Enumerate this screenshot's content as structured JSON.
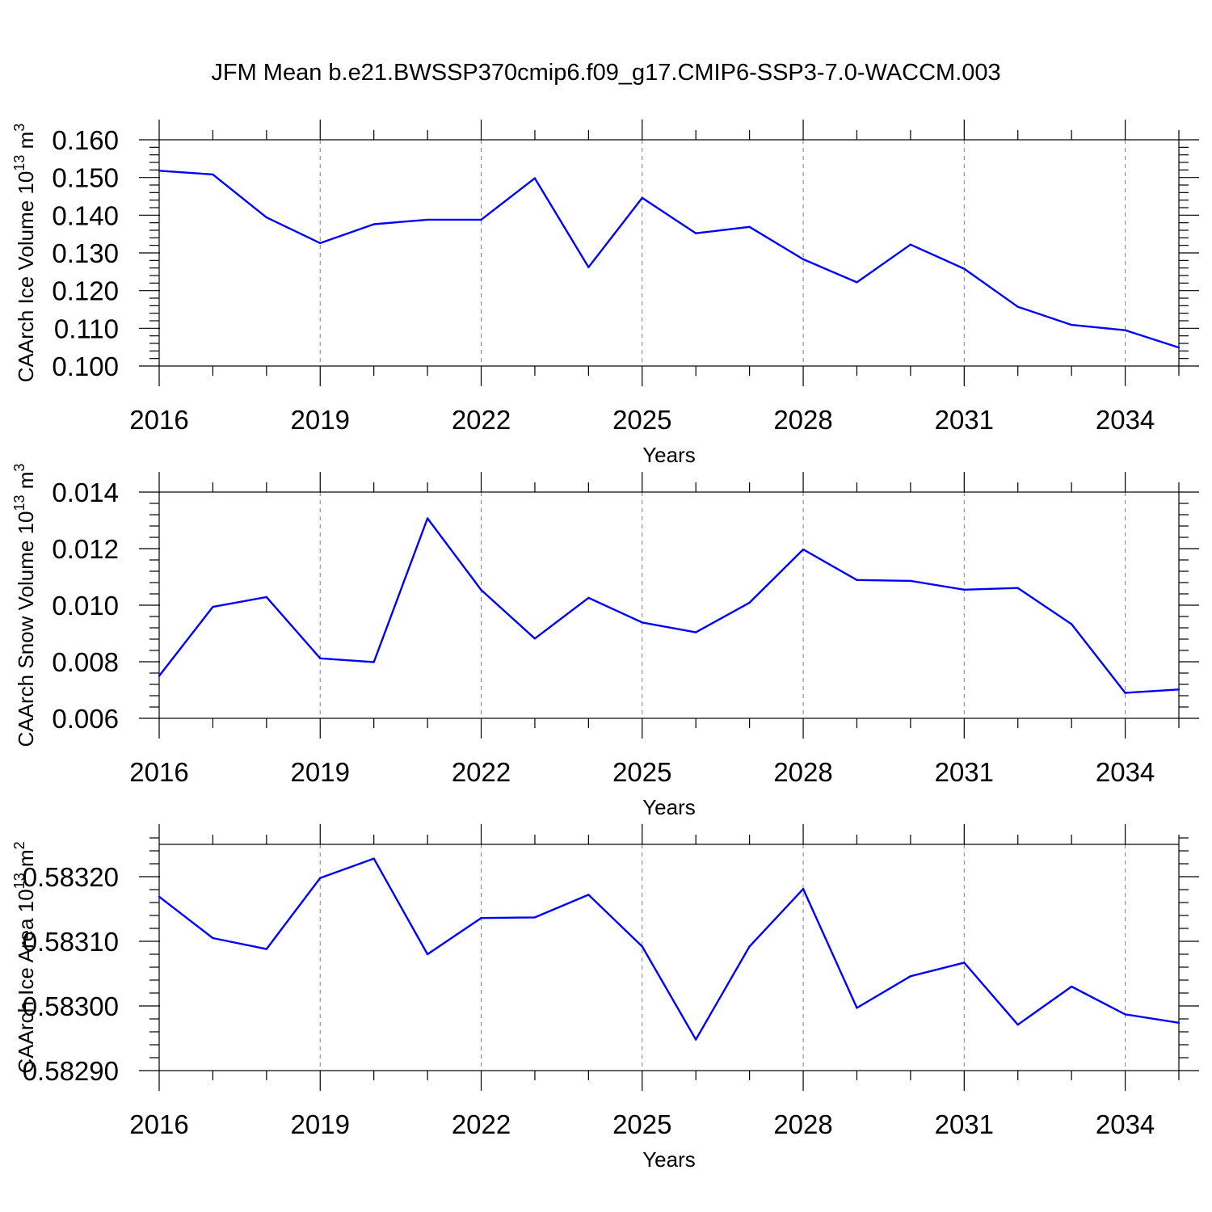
{
  "title": "JFM Mean b.e21.BWSSP370cmip6.f09_g17.CMIP6-SSP3-7.0-WACCM.003",
  "colors": {
    "line": "#0000ff",
    "axis": "#000000",
    "grid": "#808080"
  },
  "chart_data": [
    {
      "type": "line",
      "title": "JFM Mean b.e21.BWSSP370cmip6.f09_g17.CMIP6-SSP3-7.0-WACCM.003",
      "xlabel": "Years",
      "ylabel": "CAArch Ice Volume 10",
      "ylabel_exp": "13",
      "ylabel_unit": "m",
      "ylabel_unit_exp": "3",
      "xlim": [
        2016,
        2035
      ],
      "ylim": [
        0.1,
        0.16
      ],
      "x_ticks": [
        2016,
        2019,
        2022,
        2025,
        2028,
        2031,
        2034
      ],
      "x_tick_labels": [
        "2016",
        "2019",
        "2022",
        "2025",
        "2028",
        "2031",
        "2034"
      ],
      "y_ticks": [
        0.1,
        0.11,
        0.12,
        0.13,
        0.14,
        0.15,
        0.16
      ],
      "y_tick_labels": [
        "0.100",
        "0.110",
        "0.120",
        "0.130",
        "0.140",
        "0.150",
        "0.160"
      ],
      "y_minor_step": 0.002,
      "grid": "vertical dashed at labeled years",
      "x": [
        2016,
        2017,
        2018,
        2019,
        2020,
        2021,
        2022,
        2023,
        2024,
        2025,
        2026,
        2027,
        2028,
        2029,
        2030,
        2031,
        2032,
        2033,
        2034,
        2035
      ],
      "values": [
        0.1518,
        0.1508,
        0.1394,
        0.1326,
        0.1376,
        0.1388,
        0.1388,
        0.1498,
        0.1262,
        0.1446,
        0.1352,
        0.1369,
        0.1283,
        0.1222,
        0.1322,
        0.1258,
        0.1157,
        0.1109,
        0.1095,
        0.1049
      ]
    },
    {
      "type": "line",
      "xlabel": "Years",
      "ylabel": "CAArch Snow Volume 10",
      "ylabel_exp": "13",
      "ylabel_unit": "m",
      "ylabel_unit_exp": "3",
      "xlim": [
        2016,
        2035
      ],
      "ylim": [
        0.006,
        0.014
      ],
      "x_ticks": [
        2016,
        2019,
        2022,
        2025,
        2028,
        2031,
        2034
      ],
      "x_tick_labels": [
        "2016",
        "2019",
        "2022",
        "2025",
        "2028",
        "2031",
        "2034"
      ],
      "y_ticks": [
        0.006,
        0.008,
        0.01,
        0.012,
        0.014
      ],
      "y_tick_labels": [
        "0.006",
        "0.008",
        "0.010",
        "0.012",
        "0.014"
      ],
      "y_minor_step": 0.0004,
      "grid": "vertical dashed at labeled years",
      "x": [
        2016,
        2017,
        2018,
        2019,
        2020,
        2021,
        2022,
        2023,
        2024,
        2025,
        2026,
        2027,
        2028,
        2029,
        2030,
        2031,
        2032,
        2033,
        2034,
        2035
      ],
      "values": [
        0.0075,
        0.00994,
        0.01029,
        0.00812,
        0.00799,
        0.01307,
        0.01054,
        0.00882,
        0.01026,
        0.00939,
        0.00904,
        0.01009,
        0.01197,
        0.01089,
        0.01086,
        0.01055,
        0.01061,
        0.00933,
        0.0069,
        0.00702
      ]
    },
    {
      "type": "line",
      "xlabel": "Years",
      "ylabel": "CAArch Ice Area 10",
      "ylabel_exp": "13",
      "ylabel_unit": "m",
      "ylabel_unit_exp": "2",
      "xlim": [
        2016,
        2035
      ],
      "ylim": [
        0.5829,
        0.58325
      ],
      "x_ticks": [
        2016,
        2019,
        2022,
        2025,
        2028,
        2031,
        2034
      ],
      "x_tick_labels": [
        "2016",
        "2019",
        "2022",
        "2025",
        "2028",
        "2031",
        "2034"
      ],
      "y_ticks": [
        0.5829,
        0.583,
        0.5831,
        0.5832
      ],
      "y_tick_labels": [
        "0.58290",
        "0.58300",
        "0.58310",
        "0.58320"
      ],
      "y_minor_step": 2e-05,
      "grid": "vertical dashed at labeled years",
      "x": [
        2016,
        2017,
        2018,
        2019,
        2020,
        2021,
        2022,
        2023,
        2024,
        2025,
        2026,
        2027,
        2028,
        2029,
        2030,
        2031,
        2032,
        2033,
        2034,
        2035
      ],
      "values": [
        0.583169,
        0.583105,
        0.583088,
        0.583198,
        0.583228,
        0.58308,
        0.583136,
        0.583137,
        0.583172,
        0.583092,
        0.582948,
        0.583092,
        0.583181,
        0.582997,
        0.583046,
        0.583067,
        0.582971,
        0.58303,
        0.582987,
        0.582974
      ]
    }
  ]
}
